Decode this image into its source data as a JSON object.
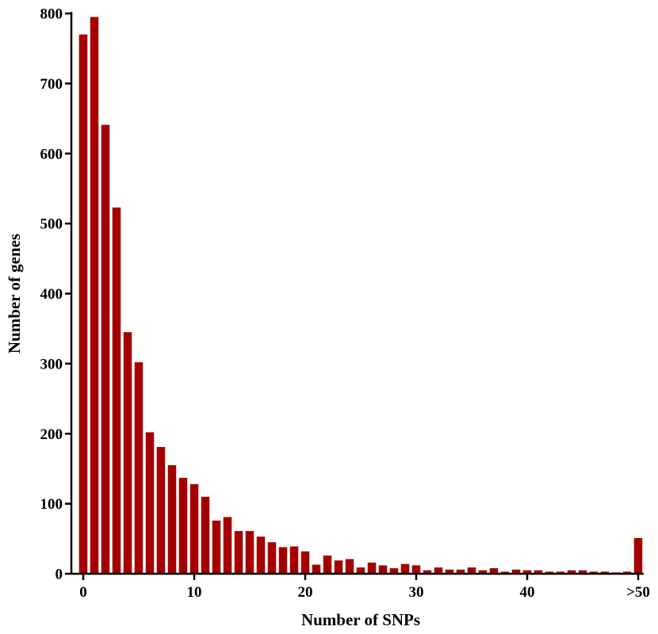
{
  "chart_data": {
    "type": "bar",
    "title": "",
    "xlabel": "Number of SNPs",
    "ylabel": "Number of genes",
    "ylim": [
      0,
      800
    ],
    "yticks": [
      0,
      100,
      200,
      300,
      400,
      500,
      600,
      700,
      800
    ],
    "xticks": [
      {
        "value": 0,
        "label": "0"
      },
      {
        "value": 10,
        "label": "10"
      },
      {
        "value": 20,
        "label": "20"
      },
      {
        "value": 30,
        "label": "30"
      },
      {
        "value": 40,
        "label": "40"
      },
      {
        "value": 50,
        "label": ">50"
      }
    ],
    "bar_color": "#a50000",
    "grid": false,
    "x": [
      0,
      1,
      2,
      3,
      4,
      5,
      6,
      7,
      8,
      9,
      10,
      11,
      12,
      13,
      14,
      15,
      16,
      17,
      18,
      19,
      20,
      21,
      22,
      23,
      24,
      25,
      26,
      27,
      28,
      29,
      30,
      31,
      32,
      33,
      34,
      35,
      36,
      37,
      38,
      39,
      40,
      41,
      42,
      43,
      44,
      45,
      46,
      47,
      48,
      49,
      50
    ],
    "values": [
      770,
      795,
      641,
      523,
      345,
      302,
      202,
      181,
      155,
      137,
      128,
      110,
      76,
      81,
      61,
      61,
      53,
      45,
      38,
      39,
      32,
      13,
      26,
      19,
      21,
      9,
      16,
      12,
      8,
      14,
      12,
      5,
      9,
      6,
      6,
      9,
      5,
      8,
      3,
      6,
      5,
      5,
      3,
      3,
      5,
      5,
      3,
      3,
      2,
      3,
      51
    ]
  }
}
